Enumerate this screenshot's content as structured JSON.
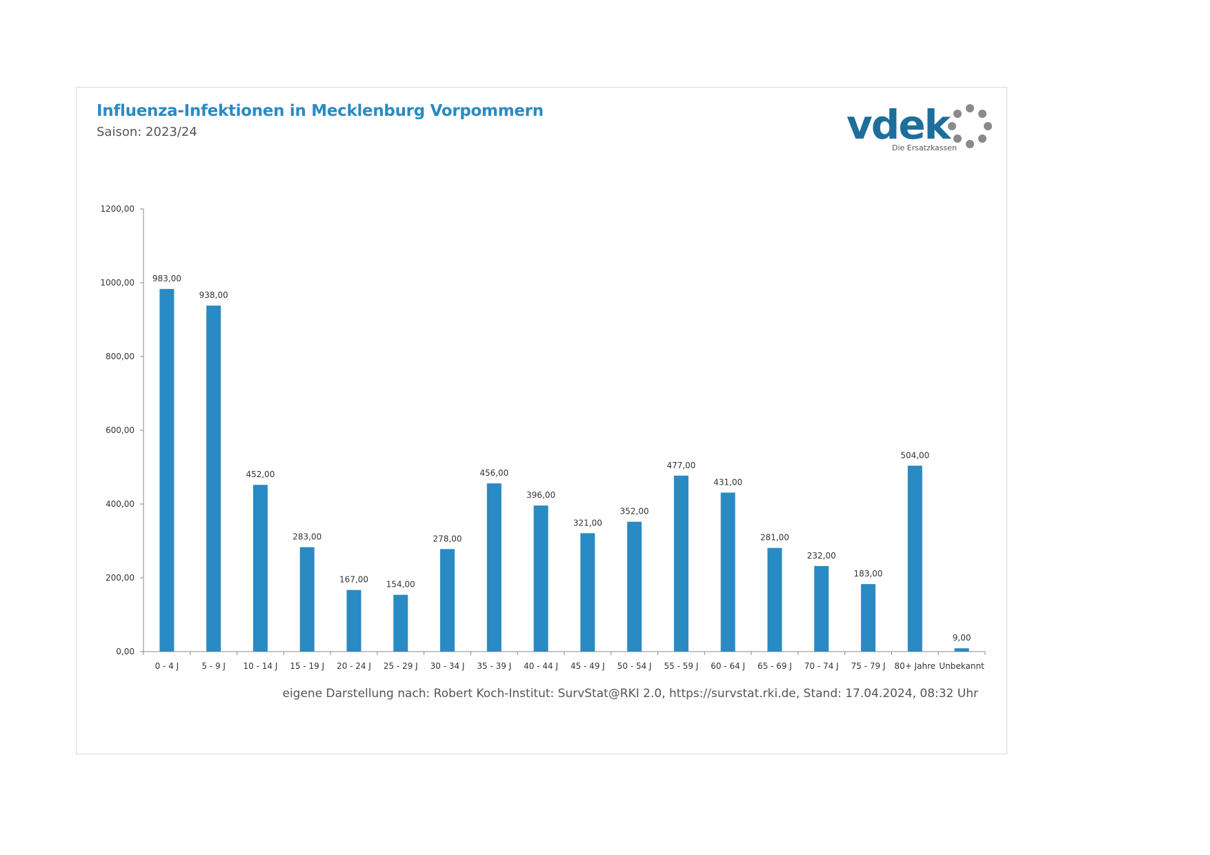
{
  "header": {
    "title": "Influenza-Infektionen in Mecklenburg Vorpommern",
    "subtitle": "Saison: 2023/24"
  },
  "logo": {
    "wordmark": "vdek",
    "tagline": "Die Ersatzkassen",
    "text_color": "#1e6e9c",
    "ring_color": "#8a8a8a"
  },
  "colors": {
    "bar": "#2a8ac3",
    "title": "#2a8ac3",
    "axis": "#888888"
  },
  "chart_data": {
    "type": "bar",
    "title": "Influenza-Infektionen in Mecklenburg Vorpommern",
    "subtitle": "Saison: 2023/24",
    "xlabel": "",
    "ylabel": "",
    "ylim": [
      0,
      1200
    ],
    "yticks": [
      0,
      200,
      400,
      600,
      800,
      1000,
      1200
    ],
    "ytick_labels": [
      "0,00",
      "200,00",
      "400,00",
      "600,00",
      "800,00",
      "1000,00",
      "1200,00"
    ],
    "grid": false,
    "categories": [
      "0 - 4 J",
      "5 - 9 J",
      "10 - 14 J",
      "15 - 19 J",
      "20 - 24 J",
      "25 - 29 J",
      "30 - 34 J",
      "35 - 39 J",
      "40 - 44 J",
      "45 - 49 J",
      "50 - 54 J",
      "55 - 59 J",
      "60 - 64 J",
      "65 - 69 J",
      "70 - 74 J",
      "75 - 79 J",
      "80+ Jahre",
      "Unbekannt"
    ],
    "values": [
      983,
      938,
      452,
      283,
      167,
      154,
      278,
      456,
      396,
      321,
      352,
      477,
      431,
      281,
      232,
      183,
      504,
      9
    ],
    "value_labels": [
      "983,00",
      "938,00",
      "452,00",
      "283,00",
      "167,00",
      "154,00",
      "278,00",
      "456,00",
      "396,00",
      "321,00",
      "352,00",
      "477,00",
      "431,00",
      "281,00",
      "232,00",
      "183,00",
      "504,00",
      "9,00"
    ]
  },
  "footer": {
    "source": "eigene Darstellung nach: Robert Koch-Institut: SurvStat@RKI 2.0, https://survstat.rki.de, Stand: 17.04.2024, 08:32 Uhr"
  }
}
